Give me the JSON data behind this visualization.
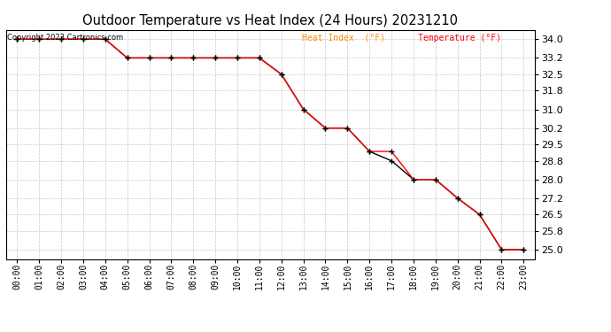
{
  "title": "Outdoor Temperature vs Heat Index (24 Hours) 20231210",
  "copyright": "Copyright 2023 Cartronics.com",
  "legend_heat": "Heat Index  (°F)",
  "legend_temp": "Temperature (°F)",
  "x_labels": [
    "00:00",
    "01:00",
    "02:00",
    "03:00",
    "04:00",
    "05:00",
    "06:00",
    "07:00",
    "08:00",
    "09:00",
    "10:00",
    "11:00",
    "12:00",
    "13:00",
    "14:00",
    "15:00",
    "16:00",
    "17:00",
    "18:00",
    "19:00",
    "20:00",
    "21:00",
    "22:00",
    "23:00"
  ],
  "heat_index": [
    34.0,
    34.0,
    34.0,
    34.0,
    34.0,
    33.2,
    33.2,
    33.2,
    33.2,
    33.2,
    33.2,
    33.2,
    32.5,
    31.0,
    30.2,
    30.2,
    29.2,
    29.2,
    28.0,
    28.0,
    27.2,
    26.5,
    25.0,
    25.0
  ],
  "temperature": [
    34.0,
    34.0,
    34.0,
    34.0,
    34.0,
    33.2,
    33.2,
    33.2,
    33.2,
    33.2,
    33.2,
    33.2,
    32.5,
    31.0,
    30.2,
    30.2,
    29.2,
    28.8,
    28.0,
    28.0,
    27.2,
    26.5,
    25.0,
    25.0
  ],
  "ylim_min": 24.6,
  "ylim_max": 34.4,
  "yticks": [
    25.0,
    25.8,
    26.5,
    27.2,
    28.0,
    28.8,
    29.5,
    30.2,
    31.0,
    31.8,
    32.5,
    33.2,
    34.0
  ],
  "heat_color": "#ff0000",
  "temp_color": "#000000",
  "background_color": "#ffffff",
  "grid_color": "#c8c8c8",
  "title_fontsize": 10.5,
  "copyright_color": "#000000",
  "legend_heat_color": "#ff8c00",
  "legend_temp_color": "#ff0000"
}
